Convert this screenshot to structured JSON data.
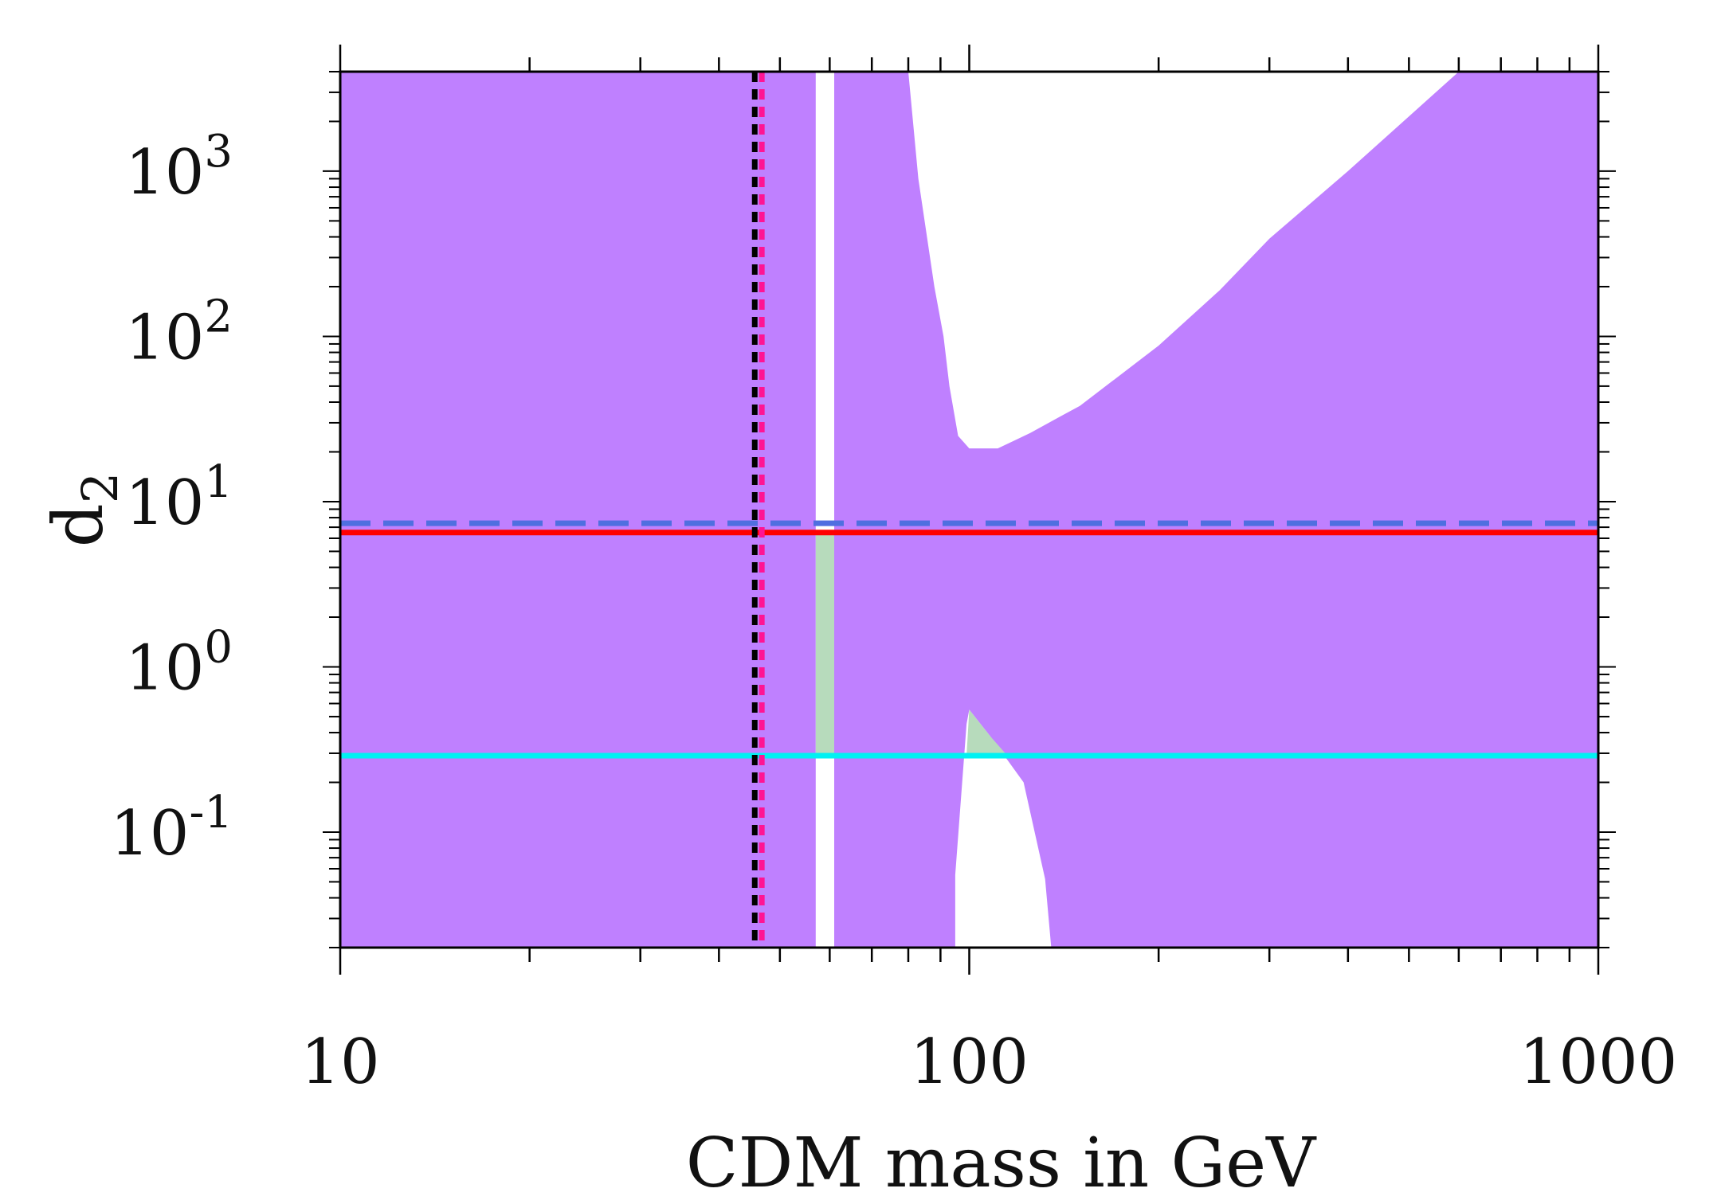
{
  "chart_data": {
    "type": "area",
    "xscale": "log",
    "yscale": "log",
    "xlim": [
      10,
      1000
    ],
    "ylim": [
      0.02,
      4000
    ],
    "xlabel": "CDM mass in GeV",
    "ylabel_base": "d",
    "ylabel_sub": "2",
    "x_ticks": [
      {
        "value": 10,
        "label": "10"
      },
      {
        "value": 100,
        "label": "100"
      },
      {
        "value": 1000,
        "label": "1000"
      }
    ],
    "y_ticks": [
      {
        "value": 0.1,
        "base": "10",
        "exp": "-1"
      },
      {
        "value": 1,
        "base": "10",
        "exp": "0"
      },
      {
        "value": 10,
        "base": "10",
        "exp": "1"
      },
      {
        "value": 100,
        "base": "10",
        "exp": "2"
      },
      {
        "value": 1000,
        "base": "10",
        "exp": "3"
      }
    ],
    "colors": {
      "excluded": "#bf80ff",
      "allowed_green": "#b7dbbc",
      "red_line": "#ff0000",
      "blue_dashed": "#4f6fe0",
      "cyan_line": "#00f2f2",
      "black_dotted": "#000000",
      "pink_dotted": "#ff1493",
      "background": "#ffffff"
    },
    "allowed_regions": [
      {
        "name": "resonance-strip",
        "points": [
          [
            57,
            0.02
          ],
          [
            57,
            4000
          ],
          [
            61,
            4000
          ],
          [
            61,
            0.02
          ]
        ]
      },
      {
        "name": "upper-right-region",
        "points": [
          [
            80,
            4000
          ],
          [
            83,
            900
          ],
          [
            88,
            200
          ],
          [
            91,
            100
          ],
          [
            93,
            50
          ],
          [
            96,
            25
          ],
          [
            100,
            21
          ],
          [
            111,
            21
          ],
          [
            125,
            26
          ],
          [
            140,
            33
          ],
          [
            150,
            38
          ],
          [
            200,
            88
          ],
          [
            250,
            190
          ],
          [
            300,
            390
          ],
          [
            400,
            1000
          ],
          [
            600,
            4000
          ]
        ]
      },
      {
        "name": "lower-region",
        "points": [
          [
            95,
            0.02
          ],
          [
            95,
            0.055
          ],
          [
            99,
            0.45
          ],
          [
            100,
            0.55
          ],
          [
            108,
            0.38
          ],
          [
            122,
            0.2
          ],
          [
            132,
            0.052
          ],
          [
            135,
            0.02
          ]
        ]
      }
    ],
    "green_regions": [
      {
        "name": "green-strip",
        "points": [
          [
            57,
            0.29
          ],
          [
            57,
            6.5
          ],
          [
            61,
            6.5
          ],
          [
            61,
            0.29
          ]
        ]
      },
      {
        "name": "green-lower",
        "points": [
          [
            99,
            0.29
          ],
          [
            100,
            0.55
          ],
          [
            108,
            0.38
          ],
          [
            115,
            0.29
          ]
        ]
      }
    ],
    "horizontal_lines": [
      {
        "name": "blue-dashed-line",
        "y": 7.4,
        "style": "dashed",
        "color": "#4f6fe0"
      },
      {
        "name": "red-line",
        "y": 6.5,
        "style": "solid",
        "color": "#ff0000"
      },
      {
        "name": "cyan-line",
        "y": 0.29,
        "style": "solid",
        "color": "#00f2f2"
      }
    ],
    "vertical_lines": [
      {
        "name": "black-dotted-line",
        "x": 45.6,
        "style": "dotted",
        "color": "#000000"
      },
      {
        "name": "pink-dotted-line",
        "x": 46.8,
        "style": "dotted",
        "color": "#ff1493"
      }
    ]
  }
}
